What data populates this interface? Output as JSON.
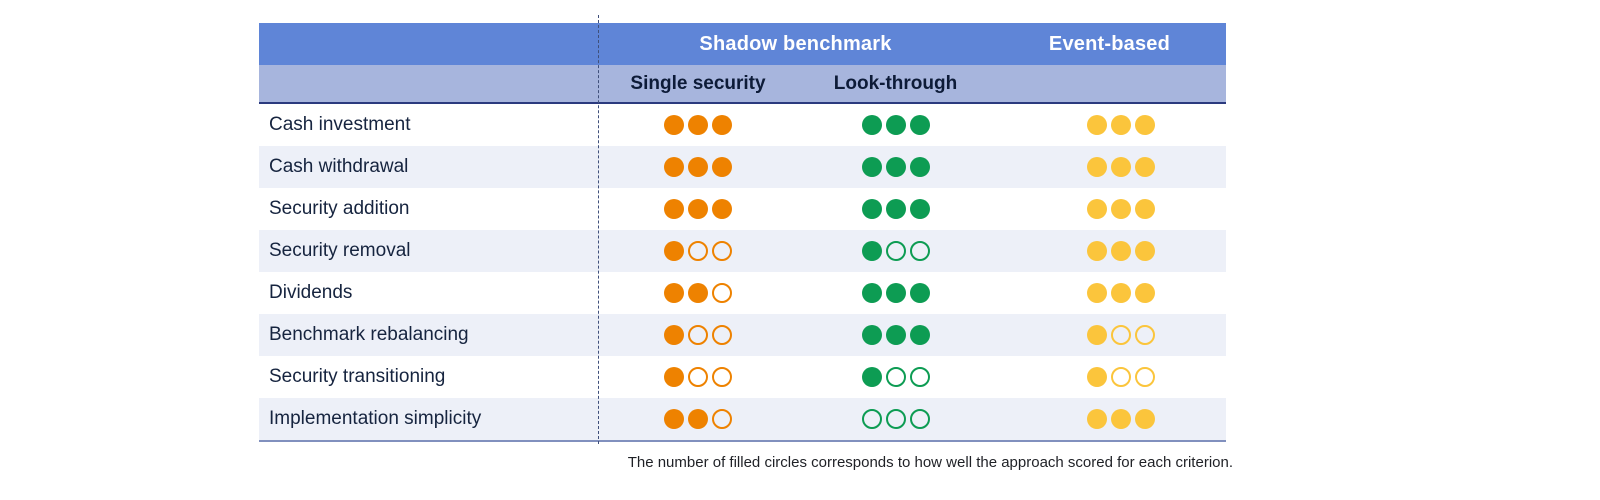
{
  "header": {
    "shadow_group": "Shadow benchmark",
    "event_group": "Event-based",
    "single": "Single security",
    "look": "Look-through"
  },
  "max_score": 3,
  "rows": [
    {
      "label": "Cash investment",
      "scores": {
        "single": 3,
        "look": 3,
        "event": 3
      }
    },
    {
      "label": "Cash withdrawal",
      "scores": {
        "single": 3,
        "look": 3,
        "event": 3
      }
    },
    {
      "label": "Security addition",
      "scores": {
        "single": 3,
        "look": 3,
        "event": 3
      }
    },
    {
      "label": "Security removal",
      "scores": {
        "single": 1,
        "look": 1,
        "event": 3
      }
    },
    {
      "label": "Dividends",
      "scores": {
        "single": 2,
        "look": 3,
        "event": 3
      }
    },
    {
      "label": "Benchmark rebalancing",
      "scores": {
        "single": 1,
        "look": 3,
        "event": 1
      }
    },
    {
      "label": "Security transitioning",
      "scores": {
        "single": 1,
        "look": 1,
        "event": 1
      }
    },
    {
      "label": "Implementation simplicity",
      "scores": {
        "single": 2,
        "look": 0,
        "event": 3
      }
    }
  ],
  "footnote": "The number of filled circles corresponds to how well the approach scored for each criterion.",
  "colors": {
    "single_security": "#EE8200",
    "look_through": "#0D9C53",
    "event_based": "#FBC53C",
    "header_band": "#5F85D7",
    "subheader_band": "#A7B5DD",
    "header_underline": "#2B3A7E",
    "row_stripe": "#EDF0F8",
    "bottom_border": "#8190BE",
    "label_text": "#16243F",
    "dashed_divider": "#3F4F7A"
  },
  "chart_data": {
    "type": "table",
    "title": "",
    "categories": [
      "Cash investment",
      "Cash withdrawal",
      "Security addition",
      "Security removal",
      "Dividends",
      "Benchmark rebalancing",
      "Security transitioning",
      "Implementation simplicity"
    ],
    "columns": [
      "Single security",
      "Look-through",
      "Event-based"
    ],
    "column_groups": [
      {
        "label": "Shadow benchmark",
        "columns": [
          "Single security",
          "Look-through"
        ]
      },
      {
        "label": "Event-based",
        "columns": [
          "Event-based"
        ]
      }
    ],
    "series": [
      {
        "name": "Single security",
        "values": [
          3,
          3,
          3,
          1,
          2,
          1,
          1,
          2
        ]
      },
      {
        "name": "Look-through",
        "values": [
          3,
          3,
          3,
          1,
          3,
          3,
          1,
          0
        ]
      },
      {
        "name": "Event-based",
        "values": [
          3,
          3,
          3,
          3,
          3,
          1,
          1,
          3
        ]
      }
    ],
    "max_value": 3,
    "note": "The number of filled circles corresponds to how well the approach scored for each criterion."
  }
}
